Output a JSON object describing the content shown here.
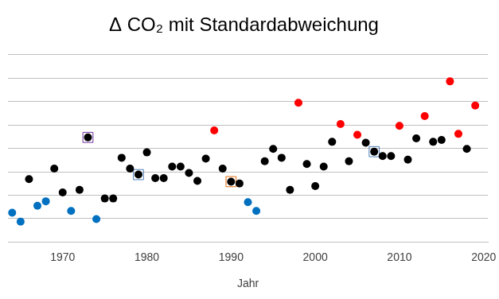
{
  "chart_data": {
    "type": "scatter",
    "title": "Δ CO₂ mit Standardabweichung",
    "x_label": "Jahr",
    "xlim": [
      1963.5,
      2020.5
    ],
    "xticks": [
      1970,
      1980,
      1990,
      2000,
      2010,
      2020
    ],
    "ylim": [
      0,
      8
    ],
    "yticks": [
      0,
      1,
      2,
      3,
      4,
      5,
      6,
      7,
      8
    ],
    "grid": true,
    "tick_labels": "x",
    "series": [
      {
        "color": "#0070c0",
        "marker": "circle",
        "x": [
          1964,
          1965,
          1967,
          1968,
          1971,
          1974,
          1992,
          1993
        ],
        "values": [
          1.25,
          0.87,
          1.55,
          1.74,
          1.33,
          0.98,
          1.7,
          1.33
        ]
      },
      {
        "color": "#000000",
        "marker": "circle",
        "x": [
          1966,
          1969,
          1970,
          1972,
          1973,
          1975,
          1976,
          1977,
          1978,
          1979,
          1980,
          1981,
          1982,
          1983,
          1984,
          1985,
          1986,
          1987,
          1989,
          1990,
          1991,
          1994,
          1995,
          1996,
          1997,
          1999,
          2000,
          2001,
          2002,
          2004,
          2006,
          2007,
          2008,
          2009,
          2011,
          2012,
          2014,
          2015,
          2018
        ],
        "values": [
          2.69,
          3.14,
          2.12,
          2.23,
          4.47,
          1.86,
          1.86,
          3.6,
          3.14,
          2.88,
          3.83,
          2.73,
          2.73,
          3.22,
          3.22,
          2.95,
          2.61,
          3.56,
          3.14,
          2.58,
          2.5,
          3.45,
          3.98,
          3.6,
          2.23,
          3.33,
          2.39,
          3.22,
          4.28,
          3.45,
          4.24,
          3.86,
          3.67,
          3.67,
          3.52,
          4.43,
          4.28,
          4.36,
          3.98
        ]
      },
      {
        "color": "#ff0000",
        "marker": "circle",
        "x": [
          1988,
          1998,
          2003,
          2005,
          2010,
          2013,
          2016,
          2017,
          2019
        ],
        "values": [
          4.77,
          5.95,
          5.04,
          4.58,
          4.96,
          5.38,
          6.86,
          4.62,
          5.83
        ]
      },
      {
        "colors": [
          "#7030a0",
          "#4f81bd",
          "#e46c0a",
          "#4f81bd"
        ],
        "marker": "square",
        "x": [
          1973,
          1979,
          1990,
          2007
        ],
        "values": [
          4.47,
          2.88,
          2.58,
          3.86
        ]
      }
    ]
  }
}
